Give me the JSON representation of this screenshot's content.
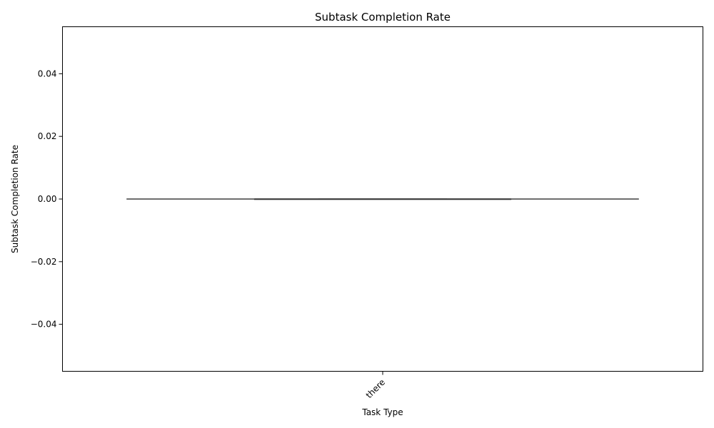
{
  "chart_data": {
    "type": "box",
    "title": "Subtask Completion Rate",
    "xlabel": "Task Type",
    "ylabel": "Subtask Completion Rate",
    "categories": [
      "there"
    ],
    "boxes": [
      {
        "category": "there",
        "min": 0,
        "q1": 0,
        "median": 0,
        "q3": 0,
        "max": 0
      }
    ],
    "ylim": [
      -0.055,
      0.055
    ],
    "yticks": [
      -0.04,
      -0.02,
      0.0,
      0.02,
      0.04
    ],
    "ytick_labels": [
      "−0.04",
      "−0.02",
      "0.00",
      "0.02",
      "0.04"
    ],
    "grid": false,
    "box_color": "#3f3f3f"
  }
}
